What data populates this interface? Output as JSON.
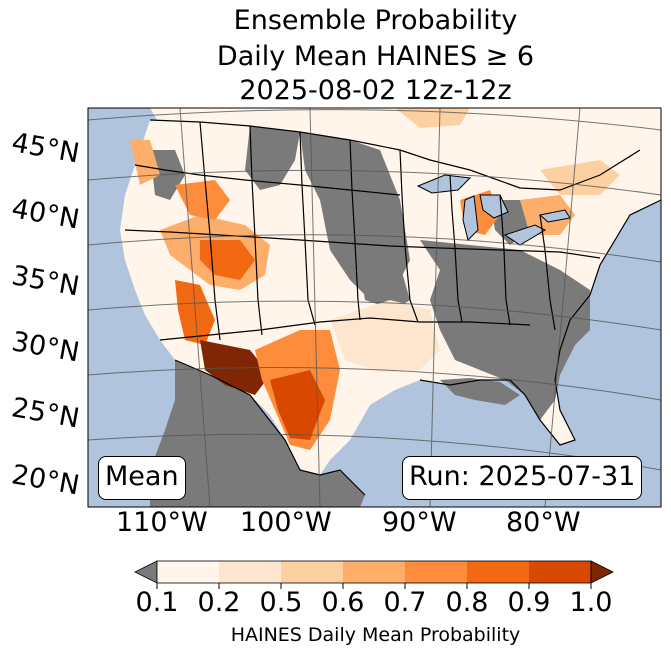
{
  "title": {
    "line1": "Ensemble Probability",
    "line2": "Daily Mean HAINES ≥ 6",
    "line3": "2025-08-02 12z-12z"
  },
  "map": {
    "lat_labels": [
      "45°N",
      "40°N",
      "35°N",
      "30°N",
      "25°N",
      "20°N"
    ],
    "lon_labels": [
      "110°W",
      "100°W",
      "90°W",
      "80°W"
    ],
    "stat_label": "Mean",
    "run_label": "Run: 2025-07-31",
    "colors": {
      "ocean": "#b0c4de",
      "below_min": "#7a7a7a",
      "border": "#000000",
      "graticule": "#555555"
    }
  },
  "colorbar": {
    "ticks": [
      "0.1",
      "0.2",
      "0.5",
      "0.6",
      "0.7",
      "0.8",
      "0.9",
      "1.0"
    ],
    "label": "HAINES Daily Mean Probability",
    "under_color": "#7a7a7a",
    "over_color": "#7f2704",
    "bin_colors": [
      "#fff5eb",
      "#fee6ce",
      "#fdd0a2",
      "#fdae6b",
      "#fd8d3c",
      "#f16913",
      "#d94801"
    ]
  }
}
